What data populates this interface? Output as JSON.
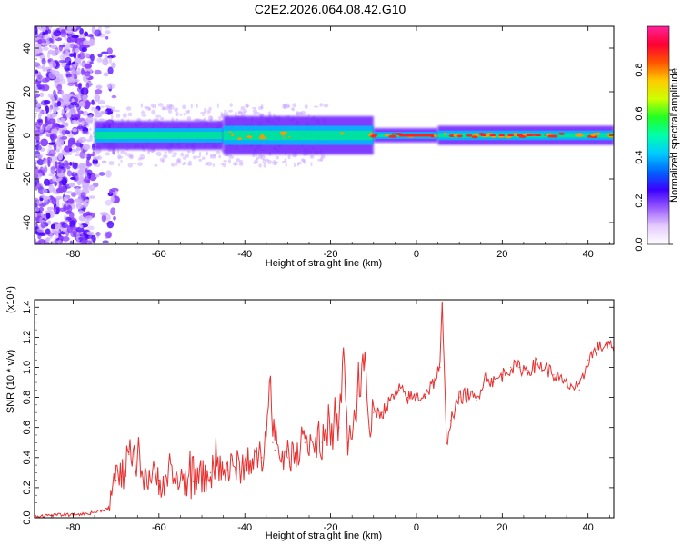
{
  "title": "C2E2.2026.064.08.42.G10",
  "colors": {
    "snr_line": "#e83030",
    "ridge_low": "#6a1fff",
    "ridge_mid": "#00e0a0",
    "ridge_high": "#ff2020",
    "scatter": "#7b2cff"
  },
  "chart_data": [
    {
      "type": "heatmap",
      "xlabel": "Height of straight line (km)",
      "ylabel": "Frequency (Hz)",
      "xlim": [
        -89,
        46
      ],
      "ylim": [
        -50,
        50
      ],
      "xticks": [
        -80,
        -60,
        -40,
        -20,
        0,
        20,
        40
      ],
      "yticks": [
        -40,
        -20,
        0,
        20,
        40
      ],
      "colorbar": {
        "label": "Normalized spectral amplitude",
        "range": [
          0.0,
          1.0
        ],
        "ticks": [
          "0.0",
          "0.2",
          "0.4",
          "0.6",
          "0.8"
        ],
        "stops": [
          "#ffffff",
          "#e5ccff",
          "#9a5cff",
          "#3a00ff",
          "#0066ff",
          "#00ccff",
          "#00ffaa",
          "#22ff22",
          "#ccff00",
          "#ffcc00",
          "#ff5500",
          "#ff0033",
          "#ff2299"
        ]
      },
      "ridge": {
        "center_frequency_hz": 0,
        "segments": [
          {
            "x": [
              -75,
              -45
            ],
            "amplitude": 0.45,
            "halfwidth_hz": 3
          },
          {
            "x": [
              -45,
              -10
            ],
            "amplitude": 0.55,
            "halfwidth_hz": 4
          },
          {
            "x": [
              -10,
              5
            ],
            "amplitude": 0.8,
            "halfwidth_hz": 1.5
          },
          {
            "x": [
              5,
              46
            ],
            "amplitude": 0.75,
            "halfwidth_hz": 2
          }
        ],
        "noise_region_x": [
          -89,
          -76
        ]
      }
    },
    {
      "type": "line",
      "xlabel": "Height of straight line (km)",
      "ylabel": "SNR (10 * v/v)",
      "y_multiplier": "(x10⁴)",
      "xlim": [
        -89,
        46
      ],
      "ylim": [
        0.0,
        1.45
      ],
      "xticks": [
        -80,
        -60,
        -40,
        -20,
        0,
        20,
        40
      ],
      "yticks": [
        "0.0",
        "0.2",
        "0.4",
        "0.6",
        "0.8",
        "1.0",
        "1.2",
        "1.4"
      ],
      "x": [
        -89,
        -84,
        -80,
        -76,
        -72,
        -71,
        -70,
        -68,
        -67,
        -64,
        -60,
        -56,
        -52,
        -48,
        -44,
        -40,
        -36,
        -34,
        -33.5,
        -33,
        -30,
        -26,
        -22,
        -18,
        -17,
        -16,
        -14,
        -12,
        -11,
        -10,
        -8,
        -6,
        -4,
        -2,
        0,
        2,
        4,
        5.5,
        6,
        7,
        8,
        10,
        12,
        14,
        16,
        18,
        20,
        22,
        24,
        26,
        28,
        30,
        32,
        34,
        36,
        38,
        40,
        42,
        44,
        46
      ],
      "y": [
        0.01,
        0.02,
        0.02,
        0.03,
        0.06,
        0.15,
        0.25,
        0.3,
        0.42,
        0.3,
        0.25,
        0.26,
        0.24,
        0.3,
        0.32,
        0.35,
        0.4,
        0.9,
        0.5,
        0.45,
        0.4,
        0.5,
        0.5,
        0.6,
        1.1,
        0.5,
        0.7,
        1.05,
        0.6,
        0.7,
        0.7,
        0.78,
        0.85,
        0.8,
        0.8,
        0.82,
        0.9,
        1.0,
        1.42,
        0.5,
        0.65,
        0.8,
        0.82,
        0.78,
        0.95,
        0.9,
        0.95,
        1.0,
        1.0,
        0.98,
        1.02,
        1.0,
        0.95,
        0.9,
        0.88,
        0.85,
        1.05,
        1.12,
        1.15,
        1.13
      ]
    }
  ]
}
